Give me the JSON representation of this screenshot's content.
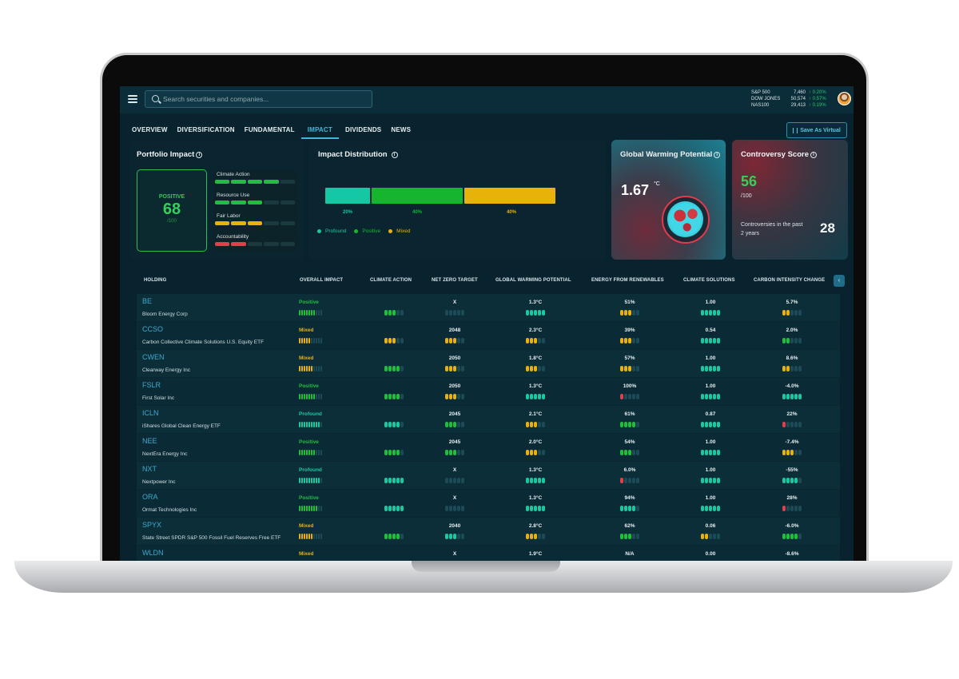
{
  "search": {
    "placeholder": "Search securities and companies..."
  },
  "tickers": [
    {
      "name": "S&P 500",
      "value": "7,460",
      "change": "0.20%"
    },
    {
      "name": "DOW JONES",
      "value": "50,574",
      "change": "0.57%"
    },
    {
      "name": "NAS100",
      "value": "29,413",
      "change": "0.19%"
    }
  ],
  "tabs": [
    "OVERVIEW",
    "DIVERSIFICATION",
    "FUNDAMENTAL",
    "IMPACT",
    "DIVIDENDS",
    "NEWS"
  ],
  "active_tab": "IMPACT",
  "save_virtual_label": "Save As Virtual",
  "portfolio_impact": {
    "title": "Portfolio Impact",
    "label": "POSITIVE",
    "score": "68",
    "denominator": "/100",
    "categories": [
      {
        "name": "Climate Action",
        "filled": 4,
        "color": "#1fbf3c"
      },
      {
        "name": "Resource Use",
        "filled": 3,
        "color": "#1fbf3c"
      },
      {
        "name": "Fair Labor",
        "filled": 3,
        "color": "#e8b10b"
      },
      {
        "name": "Accountability",
        "filled": 2,
        "color": "#e23f4b"
      }
    ]
  },
  "impact_distribution": {
    "title": "Impact Distribution",
    "segments": [
      {
        "name": "Profound",
        "percent": 20,
        "label": "20%",
        "color": "#15c8a5"
      },
      {
        "name": "Positive",
        "percent": 40,
        "label": "40%",
        "color": "#15b52e"
      },
      {
        "name": "Mixed",
        "percent": 40,
        "label": "40%",
        "color": "#e7b20a"
      }
    ]
  },
  "global_warming": {
    "title": "Global Warming Potential",
    "value": "1.67",
    "unit": "°C"
  },
  "controversy": {
    "title": "Controversy Score",
    "score": "56",
    "denominator": "/100",
    "text": "Controversies in the past 2 years",
    "count": "28"
  },
  "columns": [
    "HOLDING",
    "OVERALL IMPACT",
    "CLIMATE ACTION",
    "NET ZERO TARGET",
    "GLOBAL WARMING POTENTIAL",
    "ENERGY FROM RENEWABLES",
    "CLIMATE SOLUTIONS",
    "CARBON INTENSITY CHANGE"
  ],
  "colors": {
    "profound": "#19c9a2",
    "positive": "#1fbf3c",
    "mixed": "#e8b10b",
    "negative": "#e23f4b",
    "empty": "#1c4a57"
  },
  "holdings": [
    {
      "symbol": "BE",
      "name": "Bloom Energy Corp",
      "overall": "Positive",
      "overall_level": 7,
      "climate": 3,
      "climate_color": "positive",
      "net_zero": "X",
      "nz_level": 0,
      "nz_color": "empty",
      "gwp": "1.3°C",
      "gwp_level": 5,
      "gwp_color": "profound",
      "renew": "51%",
      "renew_level": 3,
      "renew_color": "mixed",
      "sol": "1.00",
      "sol_level": 5,
      "sol_color": "profound",
      "carbon": "5.7%",
      "carbon_level": 2,
      "carbon_color": "mixed"
    },
    {
      "symbol": "CCSO",
      "name": "Carbon Collective Climate Solutions U.S. Equity ETF",
      "overall": "Mixed",
      "overall_level": 5,
      "climate": 3,
      "climate_color": "mixed",
      "net_zero": "2048",
      "nz_level": 3,
      "nz_color": "mixed",
      "gwp": "2.3°C",
      "gwp_level": 3,
      "gwp_color": "mixed",
      "renew": "39%",
      "renew_level": 3,
      "renew_color": "mixed",
      "sol": "0.54",
      "sol_level": 5,
      "sol_color": "profound",
      "carbon": "2.0%",
      "carbon_level": 2,
      "carbon_color": "positive"
    },
    {
      "symbol": "CWEN",
      "name": "Clearway Energy Inc",
      "overall": "Mixed",
      "overall_level": 6,
      "climate": 4,
      "climate_color": "positive",
      "net_zero": "2050",
      "nz_level": 3,
      "nz_color": "mixed",
      "gwp": "1.8°C",
      "gwp_level": 3,
      "gwp_color": "mixed",
      "renew": "57%",
      "renew_level": 3,
      "renew_color": "mixed",
      "sol": "1.00",
      "sol_level": 5,
      "sol_color": "profound",
      "carbon": "8.6%",
      "carbon_level": 2,
      "carbon_color": "mixed"
    },
    {
      "symbol": "FSLR",
      "name": "First Solar Inc",
      "overall": "Positive",
      "overall_level": 7,
      "climate": 4,
      "climate_color": "positive",
      "net_zero": "2050",
      "nz_level": 3,
      "nz_color": "mixed",
      "gwp": "1.3°C",
      "gwp_level": 5,
      "gwp_color": "profound",
      "renew": "100%",
      "renew_level": 1,
      "renew_color": "negative",
      "sol": "1.00",
      "sol_level": 5,
      "sol_color": "profound",
      "carbon": "-4.0%",
      "carbon_level": 5,
      "carbon_color": "profound"
    },
    {
      "symbol": "ICLN",
      "name": "iShares Global Clean Energy ETF",
      "overall": "Profound",
      "overall_level": 9,
      "climate": 4,
      "climate_color": "profound",
      "net_zero": "2045",
      "nz_level": 3,
      "nz_color": "positive",
      "gwp": "2.1°C",
      "gwp_level": 3,
      "gwp_color": "mixed",
      "renew": "61%",
      "renew_level": 4,
      "renew_color": "positive",
      "sol": "0.87",
      "sol_level": 5,
      "sol_color": "profound",
      "carbon": "22%",
      "carbon_level": 1,
      "carbon_color": "negative"
    },
    {
      "symbol": "NEE",
      "name": "NextEra Energy Inc",
      "overall": "Positive",
      "overall_level": 7,
      "climate": 4,
      "climate_color": "positive",
      "net_zero": "2045",
      "nz_level": 3,
      "nz_color": "positive",
      "gwp": "2.0°C",
      "gwp_level": 3,
      "gwp_color": "mixed",
      "renew": "54%",
      "renew_level": 3,
      "renew_color": "positive",
      "sol": "1.00",
      "sol_level": 5,
      "sol_color": "profound",
      "carbon": "-7.4%",
      "carbon_level": 3,
      "carbon_color": "mixed"
    },
    {
      "symbol": "NXT",
      "name": "Nextpower Inc",
      "overall": "Profound",
      "overall_level": 9,
      "climate": 5,
      "climate_color": "profound",
      "net_zero": "X",
      "nz_level": 0,
      "nz_color": "empty",
      "gwp": "1.3°C",
      "gwp_level": 5,
      "gwp_color": "profound",
      "renew": "6.0%",
      "renew_level": 1,
      "renew_color": "negative",
      "sol": "1.00",
      "sol_level": 5,
      "sol_color": "profound",
      "carbon": "-55%",
      "carbon_level": 4,
      "carbon_color": "profound"
    },
    {
      "symbol": "ORA",
      "name": "Ormat Technologies Inc",
      "overall": "Positive",
      "overall_level": 8,
      "climate": 5,
      "climate_color": "profound",
      "net_zero": "X",
      "nz_level": 0,
      "nz_color": "empty",
      "gwp": "1.3°C",
      "gwp_level": 5,
      "gwp_color": "profound",
      "renew": "94%",
      "renew_level": 4,
      "renew_color": "profound",
      "sol": "1.00",
      "sol_level": 5,
      "sol_color": "profound",
      "carbon": "28%",
      "carbon_level": 1,
      "carbon_color": "negative"
    },
    {
      "symbol": "SPYX",
      "name": "State Street SPDR S&P 500 Fossil Fuel Reserves Free ETF",
      "overall": "Mixed",
      "overall_level": 6,
      "climate": 4,
      "climate_color": "positive",
      "net_zero": "2040",
      "nz_level": 3,
      "nz_color": "profound",
      "gwp": "2.8°C",
      "gwp_level": 3,
      "gwp_color": "mixed",
      "renew": "62%",
      "renew_level": 3,
      "renew_color": "positive",
      "sol": "0.06",
      "sol_level": 2,
      "sol_color": "mixed",
      "carbon": "-6.0%",
      "carbon_level": 4,
      "carbon_color": "positive"
    },
    {
      "symbol": "WLDN",
      "name": "Willdan Group Inc",
      "overall": "Mixed",
      "overall_level": 4,
      "climate": 2,
      "climate_color": "negative",
      "net_zero": "X",
      "nz_level": 0,
      "nz_color": "empty",
      "gwp": "1.9°C",
      "gwp_level": 3,
      "gwp_color": "mixed",
      "renew": "N/A",
      "renew_level": 0,
      "renew_color": "empty",
      "sol": "0.00",
      "sol_level": 0,
      "sol_color": "empty",
      "carbon": "-8.6%",
      "carbon_level": 3,
      "carbon_color": "positive"
    }
  ]
}
